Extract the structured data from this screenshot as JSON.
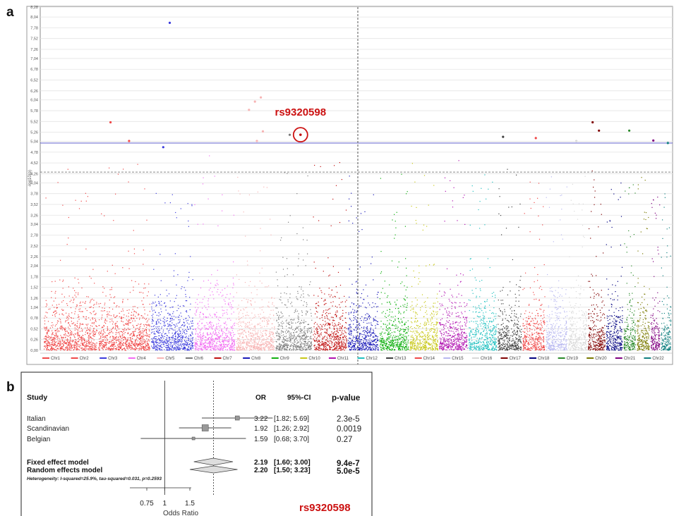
{
  "panel_a": {
    "letter": "a",
    "annotation": "rs9320598"
  },
  "panel_b": {
    "letter": "b",
    "annotation": "rs9320598"
  },
  "colors": {
    "threshold_line": "#6f6fd0",
    "annotation_red": "#cc1111",
    "chromosomes": [
      "#f04848",
      "#f04848",
      "#3b3bdc",
      "#f26cf2",
      "#f7b4b4",
      "#7a7a7a",
      "#c01010",
      "#1a1ab8",
      "#10b010",
      "#c8c818",
      "#b010b0",
      "#20c0c0",
      "#404040",
      "#f04848",
      "#b8b8f0",
      "#d8d8d8",
      "#800000",
      "#000080",
      "#2a8a2a",
      "#7a7a00",
      "#800080",
      "#108080"
    ]
  },
  "chart_data": [
    {
      "type": "scatter",
      "subtype": "manhattan",
      "title": "",
      "xlabel": "",
      "ylabel": "-log10(p)",
      "ylim": [
        0,
        8.28
      ],
      "yticks": [
        "0,00",
        "0,26",
        "0,52",
        "0,78",
        "1,04",
        "1,26",
        "1,52",
        "1,78",
        "2,04",
        "2,26",
        "2,52",
        "2,78",
        "3,04",
        "3,26",
        "3,52",
        "3,78",
        "4,04",
        "4,26",
        "4,52",
        "4,78",
        "5,04",
        "5,26",
        "5,52",
        "5,78",
        "6,04",
        "6,26",
        "6,52",
        "6,78",
        "7,04",
        "7,26",
        "7,52",
        "7,78",
        "8,04",
        "8,28"
      ],
      "significance_threshold": 5.0,
      "suggestive_threshold": 4.3,
      "chromosome_legend": [
        "Chr1",
        "Chr2",
        "Chr3",
        "Chr4",
        "Chr5",
        "Chr6",
        "Chr7",
        "Chr8",
        "Chr9",
        "Chr10",
        "Chr11",
        "Chr12",
        "Chr13",
        "Chr14",
        "Chr15",
        "Chr16",
        "Chr17",
        "Chr18",
        "Chr19",
        "Chr20",
        "Chr21",
        "Chr22"
      ],
      "chromosome_typical_max": [
        2.7,
        2.8,
        2.9,
        3.0,
        2.7,
        2.6,
        2.9,
        2.8,
        2.6,
        2.9,
        3.0,
        2.8,
        2.7,
        2.6,
        2.6,
        2.6,
        2.7,
        2.5,
        2.3,
        2.7,
        2.3,
        2.2
      ],
      "top_hits": [
        {
          "chr": "Chr2",
          "y": 5.5
        },
        {
          "chr": "Chr2",
          "y": 5.05
        },
        {
          "chr": "Chr3",
          "y": 7.9
        },
        {
          "chr": "Chr3",
          "y": 4.9
        },
        {
          "chr": "Chr5",
          "y": 6.1
        },
        {
          "chr": "Chr5",
          "y": 6.0
        },
        {
          "chr": "Chr5",
          "y": 5.8
        },
        {
          "chr": "Chr5",
          "y": 5.28
        },
        {
          "chr": "Chr5",
          "y": 5.05
        },
        {
          "chr": "Chr6",
          "y": 5.2
        },
        {
          "chr": "Chr13",
          "y": 5.15
        },
        {
          "chr": "Chr14",
          "y": 5.12
        },
        {
          "chr": "Chr16",
          "y": 5.05
        },
        {
          "chr": "Chr17",
          "y": 5.5
        },
        {
          "chr": "Chr17",
          "y": 5.3
        },
        {
          "chr": "Chr19",
          "y": 5.3
        },
        {
          "chr": "Chr21",
          "y": 5.06
        },
        {
          "chr": "Chr22",
          "y": 5.0
        }
      ],
      "annotation": {
        "label": "rs9320598",
        "chr": "Chr6",
        "y": 5.2
      }
    },
    {
      "type": "forest",
      "headers": {
        "study": "Study",
        "or": "OR",
        "ci": "95%-CI",
        "p": "p-value"
      },
      "studies": [
        {
          "name": "Italian",
          "or": "3.22",
          "ci": "[1.82; 5.69]",
          "p": "2.3e-5",
          "or_value": 3.22,
          "lo": 1.82,
          "hi": 5.69
        },
        {
          "name": "Scandinavian",
          "or": "1.92",
          "ci": "[1.26; 2.92]",
          "p": "0.0019",
          "or_value": 1.92,
          "lo": 1.26,
          "hi": 2.92
        },
        {
          "name": "Belgian",
          "or": "1.59",
          "ci": "[0.68; 3.70]",
          "p": "0.27",
          "or_value": 1.59,
          "lo": 0.68,
          "hi": 3.7
        }
      ],
      "pooled": [
        {
          "name": "Fixed effect model",
          "or": "2.19",
          "ci": "[1.60; 3.00]",
          "p": "9.4e-7",
          "or_value": 2.19,
          "lo": 1.6,
          "hi": 3.0
        },
        {
          "name": "Random effects model",
          "or": "2.20",
          "ci": "[1.50; 3.23]",
          "p": "5.0e-5",
          "or_value": 2.2,
          "lo": 1.5,
          "hi": 3.23
        }
      ],
      "heterogeneity": "Heterogeneity: I-squared=25.9%, tau-squared=0.031, p=0.2593",
      "xticks": [
        "0.75",
        "1",
        "1.5"
      ],
      "xlabel": "Odds Ratio"
    }
  ]
}
